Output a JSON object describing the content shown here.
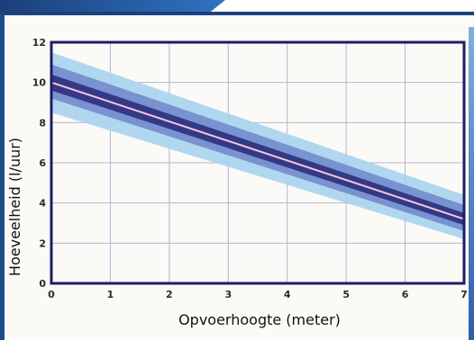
{
  "chart_data": {
    "type": "line",
    "title": "",
    "xlabel": "Opvoerhoogte (meter)",
    "ylabel": "Hoeveelheid (l/uur)",
    "xlim": [
      0,
      7
    ],
    "ylim": [
      0,
      12
    ],
    "xticks": [
      "0",
      "1",
      "2",
      "3",
      "4",
      "5",
      "6",
      "7"
    ],
    "yticks": [
      "0",
      "2",
      "4",
      "6",
      "8",
      "10",
      "12"
    ],
    "grid": true,
    "series": [
      {
        "x": [
          0,
          7
        ],
        "y": [
          10.0,
          3.2
        ]
      }
    ],
    "bands": [
      {
        "lower": [
          8.5,
          2.2
        ],
        "upper": [
          11.5,
          4.4
        ]
      },
      {
        "lower": [
          9.2,
          2.6
        ],
        "upper": [
          10.9,
          3.9
        ]
      },
      {
        "lower": [
          9.6,
          2.9
        ],
        "upper": [
          10.4,
          3.5
        ]
      }
    ],
    "colors": {
      "line": "#f2c9d8",
      "band_outer": "#a9d3f0",
      "band_middle": "#6f87c9",
      "band_inner": "#2c2f7e",
      "axis": "#1d1f66",
      "grid": "#b9b3d3"
    }
  }
}
